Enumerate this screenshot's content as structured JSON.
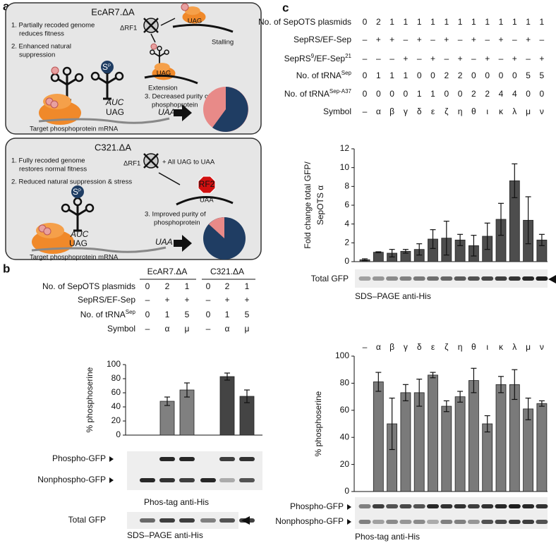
{
  "panel_labels": [
    "a",
    "b",
    "c"
  ],
  "panel_a": {
    "box1": {
      "title": "EcAR7.ΔA",
      "notes": [
        "1. Partially recoded genome",
        "reduces fitness",
        "2. Enhanced natural",
        "suppression"
      ],
      "delta": "ΔRF1",
      "stall_codon": "UAG",
      "stalling": "Stalling",
      "ext_codon": "UAG",
      "extension": "Extension",
      "outcome": [
        "3. Decreased purity of",
        "phosphoprotein"
      ],
      "sp": [
        "S",
        "P"
      ],
      "anticodon": "AUC",
      "codon": "UAG",
      "stop": "UAA",
      "mrna": "Target phosphoprotein mRNA"
    },
    "box2": {
      "title": "C321.ΔA",
      "notes": [
        "1. Fully recoded genome",
        "restores normal fitness",
        "2. Reduced natural suppression & stress"
      ],
      "delta": "ΔRF1",
      "all": "+ All UAG to UAA",
      "rf2": "RF2",
      "rf2_codon": "UAA",
      "outcome": [
        "3. Improved purity of",
        "phosphoprotein"
      ],
      "sp": [
        "S",
        "P"
      ],
      "anticodon": "AUC",
      "codon": "UAG",
      "stop": "UAA",
      "mrna": "Target phosphoprotein mRNA"
    }
  },
  "panel_b": {
    "groups": [
      "EcAR7.ΔA",
      "C321.ΔA"
    ],
    "rows": [
      {
        "label": [
          "No. of SepOTS plasmids"
        ],
        "cells": [
          0,
          2,
          1,
          0,
          2,
          1
        ]
      },
      {
        "label": [
          "SepRS/EF-Sep"
        ],
        "cells": [
          "–",
          "+",
          "+",
          "–",
          "+",
          "+"
        ]
      },
      {
        "label": [
          "No. of tRNA",
          "Sep"
        ],
        "cells": [
          0,
          1,
          5,
          0,
          1,
          5
        ]
      },
      {
        "label": [
          "Symbol"
        ],
        "cells": [
          "–",
          "α",
          "μ",
          "–",
          "α",
          "μ"
        ]
      }
    ],
    "gel_rows": [
      "Phospho-GFP",
      "Nonphospho-GFP"
    ],
    "gel_caption": "Phos-tag anti-His",
    "total_label": "Total GFP",
    "total_caption": "SDS–PAGE anti-His"
  },
  "panel_c": {
    "rows": [
      {
        "label": [
          "No. of SepOTS plasmids"
        ],
        "cells": [
          0,
          2,
          1,
          1,
          1,
          1,
          1,
          1,
          1,
          1,
          1,
          1,
          1,
          1
        ]
      },
      {
        "label": [
          "SepRS/EF-Sep"
        ],
        "cells": [
          "–",
          "+",
          "+",
          "–",
          "+",
          "–",
          "+",
          "–",
          "+",
          "–",
          "+",
          "–",
          "+",
          "–"
        ]
      },
      {
        "label": [
          "SepRS",
          "9",
          "/EF-Sep",
          "21"
        ],
        "cells": [
          "–",
          "–",
          "–",
          "+",
          "–",
          "+",
          "–",
          "+",
          "–",
          "+",
          "–",
          "+",
          "–",
          "+"
        ]
      },
      {
        "label": [
          "No. of tRNA",
          "Sep"
        ],
        "cells": [
          0,
          1,
          1,
          1,
          0,
          0,
          2,
          2,
          0,
          0,
          0,
          0,
          5,
          5
        ]
      },
      {
        "label": [
          "No. of tRNA",
          "Sep-A37"
        ],
        "cells": [
          0,
          0,
          0,
          0,
          1,
          1,
          0,
          0,
          2,
          2,
          4,
          4,
          0,
          0
        ]
      },
      {
        "label": [
          "Symbol"
        ],
        "cells": [
          "–",
          "α",
          "β",
          "γ",
          "δ",
          "ε",
          "ζ",
          "η",
          "θ",
          "ι",
          "κ",
          "λ",
          "μ",
          "ν"
        ]
      }
    ],
    "total_label": "Total GFP",
    "total_caption": "SDS–PAGE anti-His",
    "gel_rows": [
      "Phospho-GFP",
      "Nonphospho-GFP"
    ],
    "gel_caption": "Phos-tag anti-His"
  },
  "chart_data": [
    {
      "type": "bar",
      "ylabel": [
        "% phosphoserine"
      ],
      "values": [
        null,
        48,
        64,
        null,
        83,
        55
      ],
      "errors": [
        null,
        6,
        10,
        null,
        5,
        9
      ],
      "colors": [
        "#808080",
        "#808080",
        "#808080",
        "#444444",
        "#444444",
        "#444444"
      ],
      "ylim": [
        0,
        100
      ],
      "yticks": [
        0,
        20,
        40,
        60,
        80,
        100
      ]
    },
    {
      "type": "bar",
      "ylabel": [
        "Fold change total GFP/",
        "SepOTS α"
      ],
      "values": [
        0.2,
        1.0,
        0.9,
        1.1,
        1.3,
        2.4,
        2.5,
        2.3,
        1.7,
        2.7,
        4.5,
        8.6,
        4.4,
        2.3
      ],
      "errors": [
        0.1,
        0.05,
        0.4,
        0.2,
        0.6,
        1.0,
        1.8,
        0.6,
        1.1,
        1.4,
        1.7,
        1.8,
        2.5,
        0.6
      ],
      "color": "#4d4d4d",
      "ylim": [
        0,
        12
      ],
      "yticks": [
        0,
        2,
        4,
        6,
        8,
        10,
        12
      ]
    },
    {
      "type": "bar",
      "ylabel": [
        "% phosphoserine"
      ],
      "categories": [
        "–",
        "α",
        "β",
        "γ",
        "δ",
        "ε",
        "ζ",
        "η",
        "θ",
        "ι",
        "κ",
        "λ",
        "μ",
        "ν"
      ],
      "values": [
        null,
        81,
        50,
        73,
        73,
        86,
        63,
        70,
        82,
        50,
        79,
        79,
        61,
        65
      ],
      "errors": [
        null,
        7,
        19,
        6,
        10,
        2,
        4,
        4,
        9,
        6,
        6,
        11,
        8,
        2
      ],
      "color": "#7a7a7a",
      "ylim": [
        0,
        100
      ],
      "yticks": [
        0,
        20,
        40,
        60,
        80,
        100
      ]
    }
  ]
}
